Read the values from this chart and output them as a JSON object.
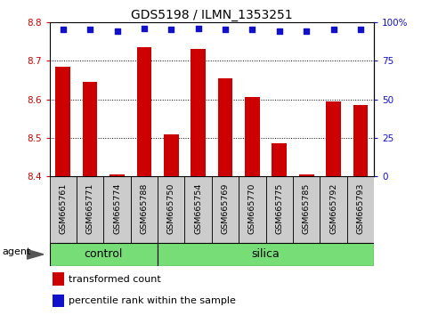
{
  "title": "GDS5198 / ILMN_1353251",
  "samples": [
    "GSM665761",
    "GSM665771",
    "GSM665774",
    "GSM665788",
    "GSM665750",
    "GSM665754",
    "GSM665769",
    "GSM665770",
    "GSM665775",
    "GSM665785",
    "GSM665792",
    "GSM665793"
  ],
  "groups": [
    "control",
    "control",
    "control",
    "control",
    "silica",
    "silica",
    "silica",
    "silica",
    "silica",
    "silica",
    "silica",
    "silica"
  ],
  "transformed_count": [
    8.685,
    8.645,
    8.405,
    8.735,
    8.51,
    8.73,
    8.655,
    8.605,
    8.485,
    8.405,
    8.595,
    8.585
  ],
  "percentile_rank": [
    95,
    95,
    94,
    96,
    95,
    96,
    95,
    95,
    94,
    94,
    95,
    95
  ],
  "ylim": [
    8.4,
    8.8
  ],
  "yticks": [
    8.4,
    8.5,
    8.6,
    8.7,
    8.8
  ],
  "right_yticks": [
    0,
    25,
    50,
    75,
    100
  ],
  "bar_color": "#cc0000",
  "dot_color": "#1111cc",
  "group_bar_color": "#77dd77",
  "bg_color": "#cccccc",
  "xlabel_color": "#cc0000",
  "right_label_color": "#1111cc",
  "agent_label": "agent",
  "legend_bar": "transformed count",
  "legend_dot": "percentile rank within the sample",
  "ctrl_count": 4
}
